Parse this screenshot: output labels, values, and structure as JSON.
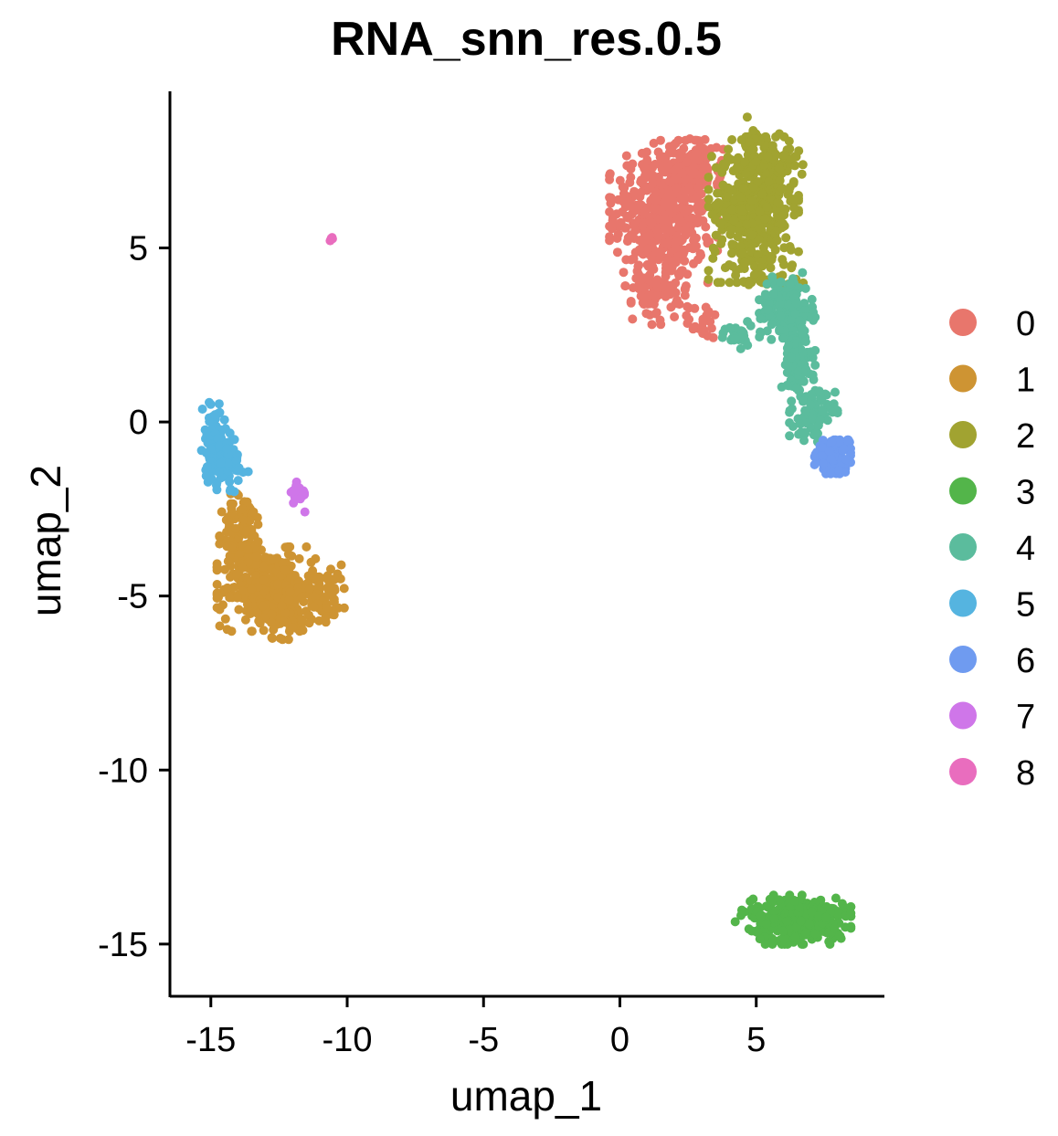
{
  "chart_data": {
    "type": "scatter",
    "title": "RNA_snn_res.0.5",
    "xlabel": "umap_1",
    "ylabel": "umap_2",
    "xlim": [
      -16.5,
      9.7
    ],
    "ylim": [
      -16.5,
      9.5
    ],
    "x_ticks": [
      -15,
      -10,
      -5,
      0,
      5
    ],
    "y_ticks": [
      5,
      0,
      -5,
      -10,
      -15
    ],
    "x_tick_labels": [
      "-15",
      "-10",
      "-5",
      "0",
      "5"
    ],
    "y_tick_labels": [
      "5",
      "0",
      "-5",
      "-10",
      "-15"
    ],
    "grid": false,
    "legend_position": "right",
    "series": [
      {
        "name": "0",
        "color": "#E8766C",
        "clusters": [
          {
            "center": [
              1.6,
              6.0
            ],
            "spread": [
              0.9,
              0.95
            ],
            "n": 480
          },
          {
            "center": [
              2.8,
              7.3
            ],
            "spread": [
              0.45,
              0.4
            ],
            "n": 80
          },
          {
            "center": [
              1.4,
              3.9
            ],
            "spread": [
              0.45,
              0.5
            ],
            "n": 80
          },
          {
            "center": [
              3.1,
              2.9
            ],
            "spread": [
              0.3,
              0.25
            ],
            "n": 25
          }
        ]
      },
      {
        "name": "1",
        "color": "#CE9433",
        "clusters": [
          {
            "center": [
              -12.9,
              -4.8
            ],
            "spread": [
              0.85,
              0.55
            ],
            "n": 340
          },
          {
            "center": [
              -13.8,
              -3.2
            ],
            "spread": [
              0.4,
              0.55
            ],
            "n": 110
          },
          {
            "center": [
              -11.0,
              -4.9
            ],
            "spread": [
              0.55,
              0.4
            ],
            "n": 80
          },
          {
            "center": [
              -12.3,
              -5.7
            ],
            "spread": [
              0.55,
              0.25
            ],
            "n": 40
          }
        ]
      },
      {
        "name": "2",
        "color": "#A1A331",
        "clusters": [
          {
            "center": [
              4.9,
              6.1
            ],
            "spread": [
              0.75,
              0.95
            ],
            "n": 400
          },
          {
            "center": [
              5.5,
              7.4
            ],
            "spread": [
              0.55,
              0.4
            ],
            "n": 80
          },
          {
            "center": [
              4.9,
              8.1
            ],
            "spread": [
              0.2,
              0.3
            ],
            "n": 12
          },
          {
            "center": [
              5.4,
              4.3
            ],
            "spread": [
              0.6,
              0.35
            ],
            "n": 35
          }
        ]
      },
      {
        "name": "3",
        "color": "#53B54A",
        "clusters": [
          {
            "center": [
              6.6,
              -14.3
            ],
            "spread": [
              0.85,
              0.32
            ],
            "n": 380
          },
          {
            "center": [
              5.0,
              -14.1
            ],
            "spread": [
              0.35,
              0.15
            ],
            "n": 20
          }
        ]
      },
      {
        "name": "4",
        "color": "#5BBC9D",
        "clusters": [
          {
            "center": [
              6.1,
              3.3
            ],
            "spread": [
              0.45,
              0.45
            ],
            "n": 150
          },
          {
            "center": [
              6.5,
              1.7
            ],
            "spread": [
              0.3,
              0.6
            ],
            "n": 120
          },
          {
            "center": [
              7.1,
              0.2
            ],
            "spread": [
              0.4,
              0.35
            ],
            "n": 70
          },
          {
            "center": [
              4.4,
              2.5
            ],
            "spread": [
              0.45,
              0.18
            ],
            "n": 30
          }
        ]
      },
      {
        "name": "5",
        "color": "#55B4E0",
        "clusters": [
          {
            "center": [
              -14.9,
              -0.6
            ],
            "spread": [
              0.2,
              0.55
            ],
            "n": 80
          },
          {
            "center": [
              -14.4,
              -1.2
            ],
            "spread": [
              0.35,
              0.4
            ],
            "n": 70
          }
        ]
      },
      {
        "name": "6",
        "color": "#6F9BF0",
        "clusters": [
          {
            "center": [
              7.8,
              -1.0
            ],
            "spread": [
              0.3,
              0.22
            ],
            "n": 200
          }
        ]
      },
      {
        "name": "7",
        "color": "#CF76E9",
        "clusters": [
          {
            "center": [
              -11.8,
              -2.1
            ],
            "spread": [
              0.15,
              0.22
            ],
            "n": 22
          }
        ]
      },
      {
        "name": "8",
        "color": "#E96DBE",
        "clusters": [
          {
            "center": [
              -10.6,
              5.3
            ],
            "spread": [
              0.05,
              0.05
            ],
            "n": 4
          }
        ]
      }
    ]
  }
}
